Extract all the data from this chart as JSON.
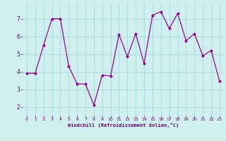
{
  "x": [
    0,
    1,
    2,
    3,
    4,
    5,
    6,
    7,
    8,
    9,
    10,
    11,
    12,
    13,
    14,
    15,
    16,
    17,
    18,
    19,
    20,
    21,
    22,
    23
  ],
  "y": [
    3.9,
    3.9,
    5.5,
    7.0,
    7.0,
    4.3,
    3.3,
    3.3,
    2.1,
    3.8,
    3.75,
    6.1,
    4.85,
    6.15,
    4.45,
    7.2,
    7.4,
    6.45,
    7.3,
    5.75,
    6.15,
    4.9,
    5.2,
    3.45
  ],
  "line_color": "#990099",
  "marker": "D",
  "marker_size": 2.0,
  "bg_color": "#d0f0f0",
  "grid_color": "#aadddd",
  "xlabel": "Windchill (Refroidissement éolien,°C)",
  "xlabel_color": "#660066",
  "tick_color": "#660066",
  "ylim": [
    1.5,
    7.9
  ],
  "xlim": [
    -0.5,
    23.5
  ],
  "yticks": [
    2,
    3,
    4,
    5,
    6,
    7
  ],
  "xticks": [
    0,
    1,
    2,
    3,
    4,
    5,
    6,
    7,
    8,
    9,
    10,
    11,
    12,
    13,
    14,
    15,
    16,
    17,
    18,
    19,
    20,
    21,
    22,
    23
  ]
}
